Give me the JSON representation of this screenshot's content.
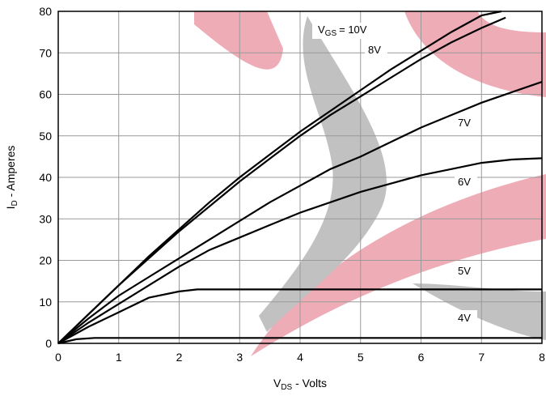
{
  "chart_data": {
    "type": "line",
    "x_label": {
      "text": "V",
      "sub": "DS",
      "rest": " - Volts"
    },
    "y_label": {
      "text": "I",
      "sub": "D",
      "rest": " - Amperes"
    },
    "curve_label_prefix": {
      "text": "V",
      "sub": "GS"
    },
    "xlim": [
      0,
      8
    ],
    "xticks": [
      0,
      1,
      2,
      3,
      4,
      5,
      6,
      7,
      8
    ],
    "ylim": [
      0,
      80
    ],
    "yticks": [
      0,
      10,
      20,
      30,
      40,
      50,
      60,
      70,
      80
    ],
    "grid": true,
    "color": "#000000",
    "series": [
      {
        "label": "= 10V",
        "x": [
          0,
          0.5,
          1,
          1.5,
          2,
          2.5,
          3,
          3.5,
          4,
          4.5,
          5,
          5.5,
          6,
          6.5,
          7,
          7.33
        ],
        "values": [
          0,
          7,
          14,
          21,
          27.5,
          34,
          40,
          45.5,
          51,
          56,
          61,
          66,
          70.5,
          75,
          79,
          80
        ]
      },
      {
        "label": "8V",
        "x": [
          0,
          0.5,
          1,
          1.5,
          2,
          2.5,
          3,
          3.5,
          4,
          4.5,
          5,
          5.5,
          6,
          6.5,
          7,
          7.4
        ],
        "values": [
          0,
          7,
          14,
          20.5,
          27,
          33,
          39,
          44.5,
          50,
          55,
          59.5,
          64,
          68.5,
          72.5,
          76,
          78.5
        ]
      },
      {
        "label": "7V",
        "x": [
          0,
          0.5,
          1,
          1.5,
          2,
          2.5,
          3,
          3.5,
          4,
          4.5,
          5,
          5.5,
          6,
          6.5,
          7,
          7.5,
          8
        ],
        "values": [
          0,
          6,
          11.5,
          16,
          20.5,
          25,
          29.5,
          34,
          38,
          42,
          45,
          48.5,
          52,
          55,
          58,
          60.5,
          63
        ]
      },
      {
        "label": "6V",
        "x": [
          0,
          0.5,
          1,
          1.5,
          2,
          2.5,
          3,
          3.5,
          4,
          4.5,
          5,
          5.5,
          6,
          6.5,
          7,
          7.5,
          8
        ],
        "values": [
          0,
          5,
          9.5,
          14,
          18.5,
          22.5,
          25.5,
          28.5,
          31.5,
          34,
          36.5,
          38.5,
          40.5,
          42,
          43.5,
          44.3,
          44.6
        ]
      },
      {
        "label": "5V",
        "x": [
          0,
          0.5,
          1,
          1.5,
          2,
          2.3,
          3,
          8
        ],
        "values": [
          0,
          4,
          7.5,
          11,
          12.5,
          13,
          13,
          13
        ]
      },
      {
        "label": "4V",
        "x": [
          0,
          0.3,
          0.6,
          8
        ],
        "values": [
          0,
          1,
          1.3,
          1.3
        ]
      }
    ]
  }
}
